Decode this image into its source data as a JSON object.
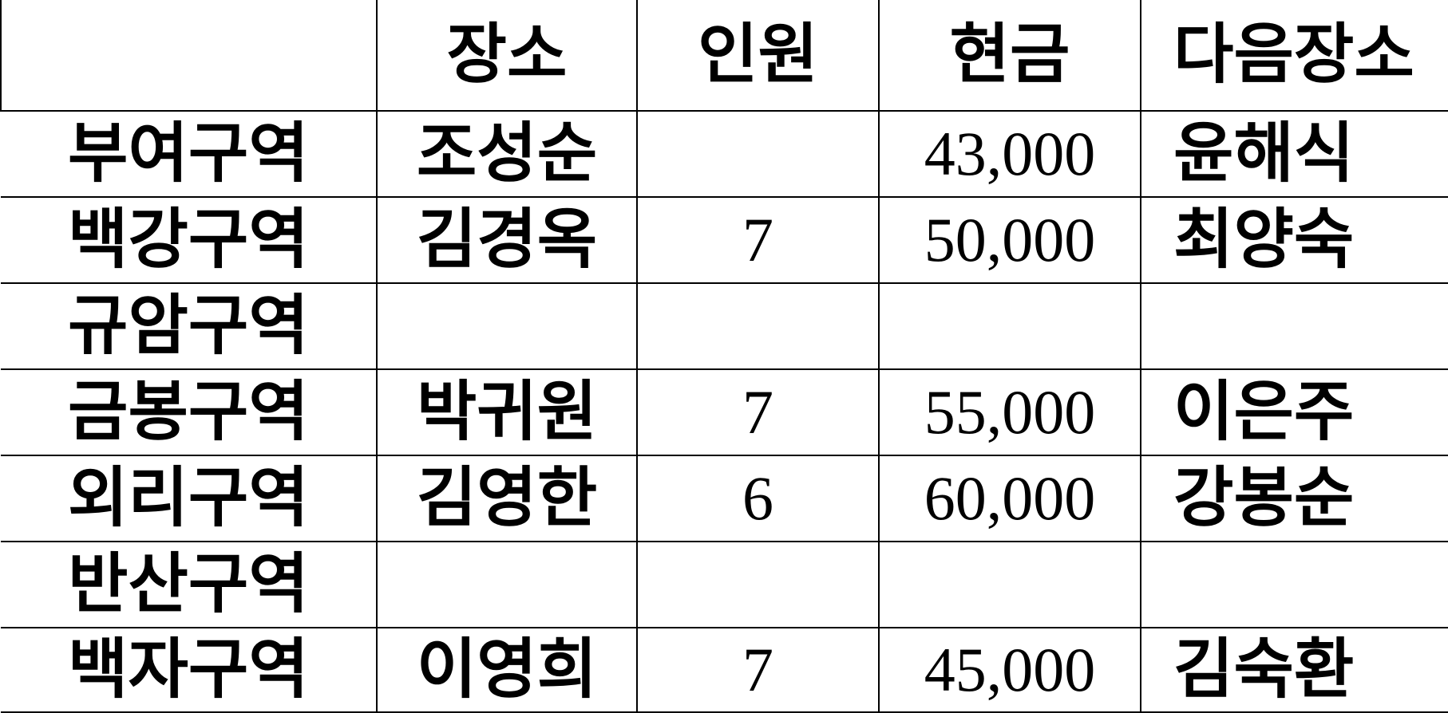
{
  "table": {
    "headers": [
      "",
      "장소",
      "인원",
      "현금",
      "다음장소"
    ],
    "rows": [
      {
        "region": "부여구역",
        "place": "조성순",
        "count": "",
        "cash": "43,000",
        "next": "윤해식"
      },
      {
        "region": "백강구역",
        "place": "김경옥",
        "count": "7",
        "cash": "50,000",
        "next": "최양숙"
      },
      {
        "region": "규암구역",
        "place": "",
        "count": "",
        "cash": "",
        "next": ""
      },
      {
        "region": "금봉구역",
        "place": "박귀원",
        "count": "7",
        "cash": "55,000",
        "next": "이은주"
      },
      {
        "region": "외리구역",
        "place": "김영한",
        "count": "6",
        "cash": "60,000",
        "next": "강봉순"
      },
      {
        "region": "반산구역",
        "place": "",
        "count": "",
        "cash": "",
        "next": ""
      },
      {
        "region": "백자구역",
        "place": "이영희",
        "count": "7",
        "cash": "45,000",
        "next": "김숙환"
      }
    ]
  }
}
